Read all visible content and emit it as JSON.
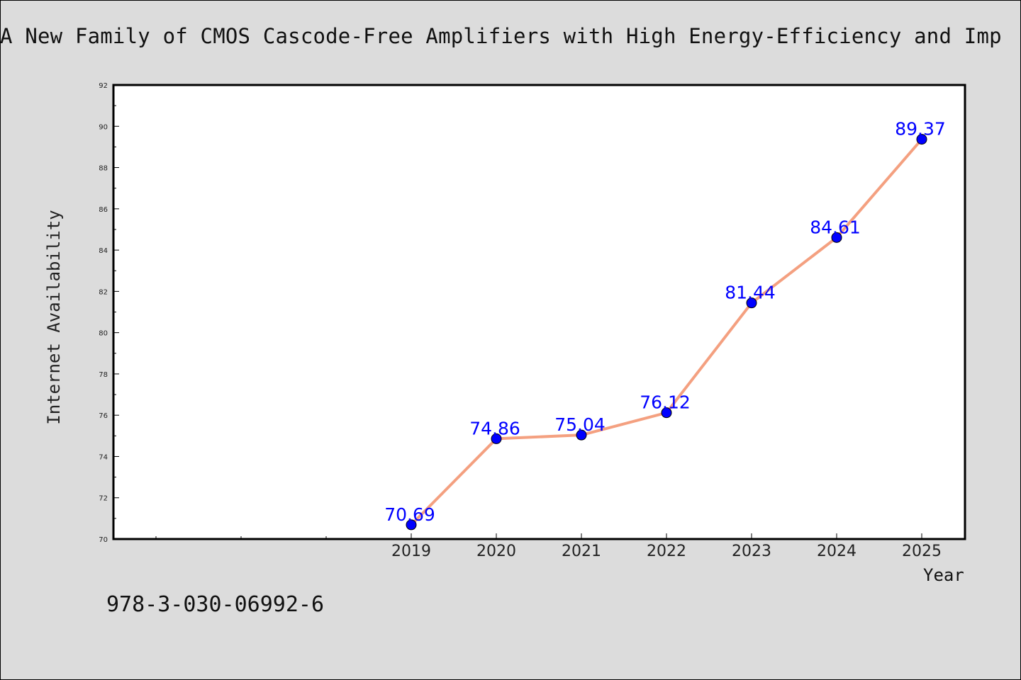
{
  "header": {
    "title": "A New Family of CMOS Cascode-Free Amplifiers with High Energy-Efficiency and Imp"
  },
  "footer": {
    "isbn": "978-3-030-06992-6"
  },
  "chart_data": {
    "type": "line",
    "title": "A New Family of CMOS Cascode-Free Amplifiers with High Energy-Efficiency and Imp",
    "xlabel": "Year",
    "ylabel": "Internet Availability",
    "x": [
      "2019",
      "2020",
      "2021",
      "2022",
      "2023",
      "2024",
      "2025"
    ],
    "series": [
      {
        "values": [
          70.69,
          74.86,
          75.04,
          76.12,
          81.44,
          84.61,
          89.37
        ],
        "line_color": "#f4a080",
        "marker_color": "#0000ff"
      }
    ],
    "data_labels": [
      "70.69",
      "74.86",
      "75.04",
      "76.12",
      "81.44",
      "84.61",
      "89.37"
    ],
    "ylim": [
      70,
      92
    ],
    "y_ticks": [
      "70",
      "72",
      "74",
      "76",
      "78",
      "80",
      "82",
      "84",
      "86",
      "88",
      "90",
      "92"
    ],
    "x_tick_labels": [
      "2019",
      "2020",
      "2021",
      "2022",
      "2023",
      "2024",
      "2025"
    ],
    "grid": false,
    "legend": "none",
    "label_color": "#0000ff"
  }
}
